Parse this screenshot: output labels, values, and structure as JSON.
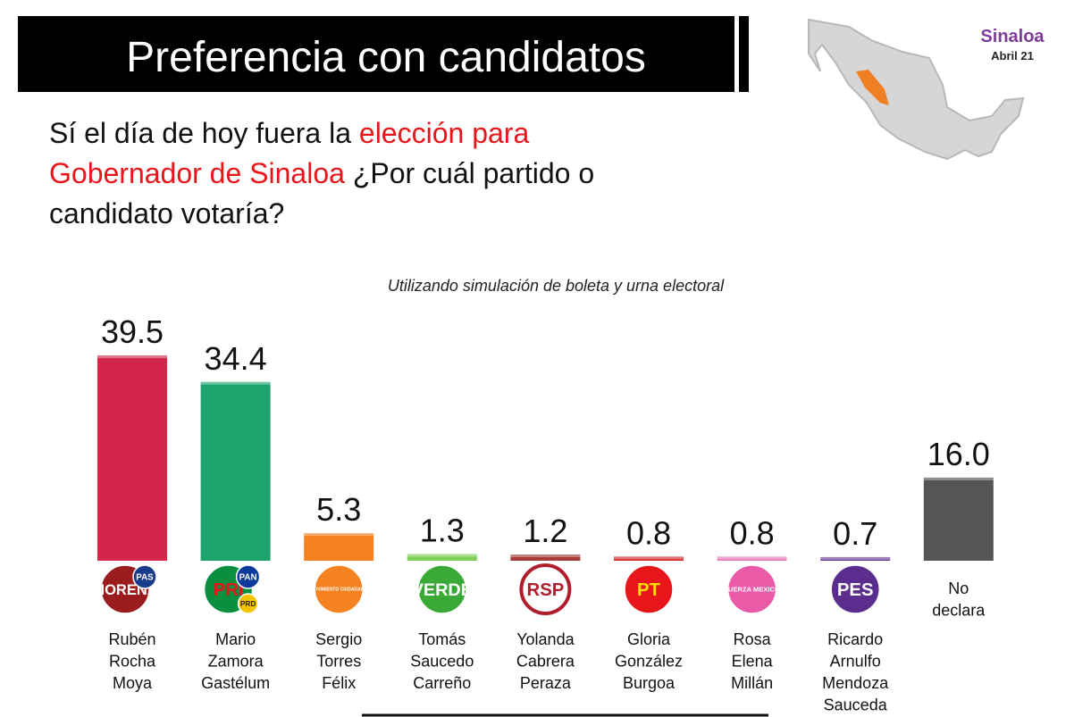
{
  "chart_data": {
    "type": "bar",
    "title": "Preferencia con candidatos",
    "region": "Sinaloa",
    "date": "Abril 21",
    "question": [
      [
        {
          "text": "Sí el día de hoy fuera la ",
          "color": "#111111"
        },
        {
          "text": "elección para",
          "color": "#e8161b"
        }
      ],
      [
        {
          "text": "Gobernador de Sinaloa",
          "color": "#e8161b"
        },
        {
          "text": "  ¿Por cuál partido o",
          "color": "#111111"
        }
      ],
      [
        {
          "text": "candidato votaría?",
          "color": "#111111"
        }
      ]
    ],
    "subtitle": "Utilizando simulación de boleta y urna electoral",
    "categories": [
      [
        "Rubén",
        "Rocha",
        "Moya"
      ],
      [
        "Mario",
        "Zamora",
        "Gastélum"
      ],
      [
        "Sergio",
        "Torres",
        "Félix"
      ],
      [
        "Tomás",
        "Saucedo",
        "Carreño"
      ],
      [
        "Yolanda",
        "Cabrera",
        "Peraza"
      ],
      [
        "Gloria",
        "González",
        "Burgoa"
      ],
      [
        "Rosa",
        "Elena",
        "Millán"
      ],
      [
        "Ricardo",
        "Arnulfo",
        "Mendoza",
        "Sauceda"
      ],
      [
        "No",
        "declara"
      ]
    ],
    "values": [
      39.5,
      34.4,
      5.3,
      1.3,
      1.2,
      0.8,
      0.8,
      0.7,
      16.0
    ],
    "value_labels": [
      "39.5",
      "34.4",
      "5.3",
      "1.3",
      "1.2",
      "0.8",
      "0.8",
      "0.7",
      "16.0"
    ],
    "colors": [
      "#d3264a",
      "#1ea36f",
      "#f5821f",
      "#7fcf5a",
      "#a83a3a",
      "#d42a2a",
      "#e878b8",
      "#6a3d9a",
      "#555555"
    ],
    "logos": [
      [
        {
          "text": "MORENA",
          "color": "#9b1c1c",
          "fg": "#ffffff"
        },
        {
          "text": "PAS",
          "color": "#1a3a8a",
          "fg": "#ffffff"
        }
      ],
      [
        {
          "text": "PRI",
          "color": "#0a8f3e",
          "fg": "#e8161b"
        },
        {
          "text": "PAN",
          "color": "#0b3a9c",
          "fg": "#ffffff"
        },
        {
          "text": "PRD",
          "color": "#f5c400",
          "fg": "#222222"
        }
      ],
      [
        {
          "text": "MOVIMIENTO CIUDADANO",
          "color": "#f58220",
          "fg": "#ffffff"
        }
      ],
      [
        {
          "text": "VERDE",
          "color": "#3aa935",
          "fg": "#ffffff"
        }
      ],
      [
        {
          "text": "RSP",
          "color": "#ffffff",
          "fg": "#b01e2e"
        }
      ],
      [
        {
          "text": "PT",
          "color": "#e8161b",
          "fg": "#ffe000"
        }
      ],
      [
        {
          "text": "FUERZA MEXICO",
          "color": "#ea5aa6",
          "fg": "#ffffff"
        }
      ],
      [
        {
          "text": "PES",
          "color": "#5b2d8e",
          "fg": "#ffffff"
        }
      ],
      null
    ]
  }
}
